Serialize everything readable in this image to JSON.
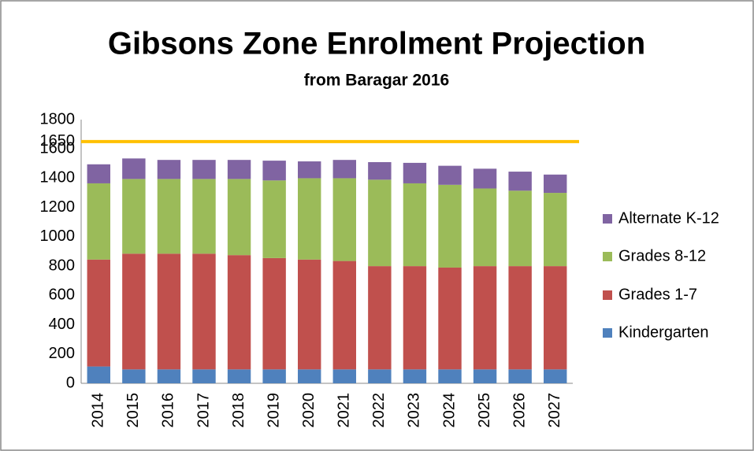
{
  "chart_data": {
    "type": "stacked_bar",
    "title": "Gibsons Zone Enrolment Projection",
    "subtitle": "from Baragar 2016",
    "categories": [
      "2014",
      "2015",
      "2016",
      "2017",
      "2018",
      "2019",
      "2020",
      "2021",
      "2022",
      "2023",
      "2024",
      "2025",
      "2026",
      "2027"
    ],
    "series": [
      {
        "name": "Kindergarten",
        "color": "#4f81bd",
        "values": [
          115,
          95,
          95,
          95,
          95,
          95,
          95,
          95,
          95,
          95,
          95,
          95,
          95,
          95
        ]
      },
      {
        "name": "Grades 1-7",
        "color": "#c0504d",
        "values": [
          730,
          790,
          790,
          790,
          780,
          760,
          750,
          740,
          705,
          705,
          695,
          705,
          705,
          705
        ]
      },
      {
        "name": "Grades 8-12",
        "color": "#9bbb59",
        "values": [
          520,
          510,
          510,
          510,
          520,
          530,
          555,
          565,
          590,
          565,
          565,
          530,
          515,
          500
        ]
      },
      {
        "name": "Alternate K-12",
        "color": "#8064a2",
        "values": [
          130,
          140,
          130,
          130,
          130,
          135,
          115,
          125,
          120,
          140,
          130,
          135,
          130,
          125
        ]
      }
    ],
    "reference_line": {
      "value": 1650,
      "color": "#ffc000"
    },
    "ylim": [
      0,
      1800
    ],
    "yticks": [
      0,
      200,
      400,
      600,
      800,
      1000,
      1200,
      1400,
      1600,
      1650,
      1800
    ],
    "legend": "right"
  }
}
